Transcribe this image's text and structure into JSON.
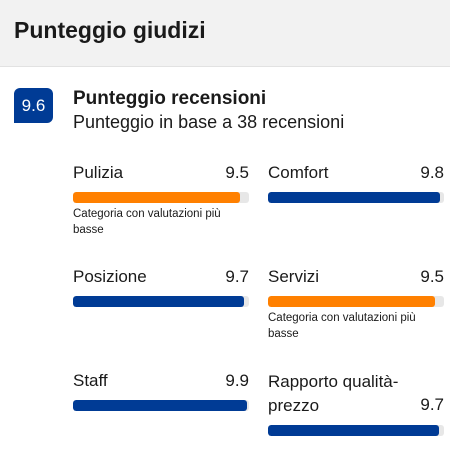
{
  "header": {
    "title": "Punteggio giudizi"
  },
  "summary": {
    "score": "9.6",
    "title": "Punteggio recensioni",
    "subtitle": "Punteggio in base a 38 recensioni"
  },
  "colors": {
    "primary": "#003b95",
    "low": "#ff8000",
    "track": "#e7e7e7"
  },
  "categories": [
    {
      "label": "Pulizia",
      "score": "9.5",
      "level": 0.95,
      "highlight": "low",
      "note": "Categoria con valutazioni più basse"
    },
    {
      "label": "Comfort",
      "score": "9.8",
      "level": 0.98,
      "highlight": "normal"
    },
    {
      "label": "Posizione",
      "score": "9.7",
      "level": 0.97,
      "highlight": "normal"
    },
    {
      "label": "Servizi",
      "score": "9.5",
      "level": 0.95,
      "highlight": "low",
      "note": "Categoria con valutazioni più basse"
    },
    {
      "label": "Staff",
      "score": "9.9",
      "level": 0.99,
      "highlight": "normal"
    },
    {
      "label": "Rapporto qualità-prezzo",
      "score": "9.7",
      "level": 0.97,
      "highlight": "normal"
    }
  ]
}
